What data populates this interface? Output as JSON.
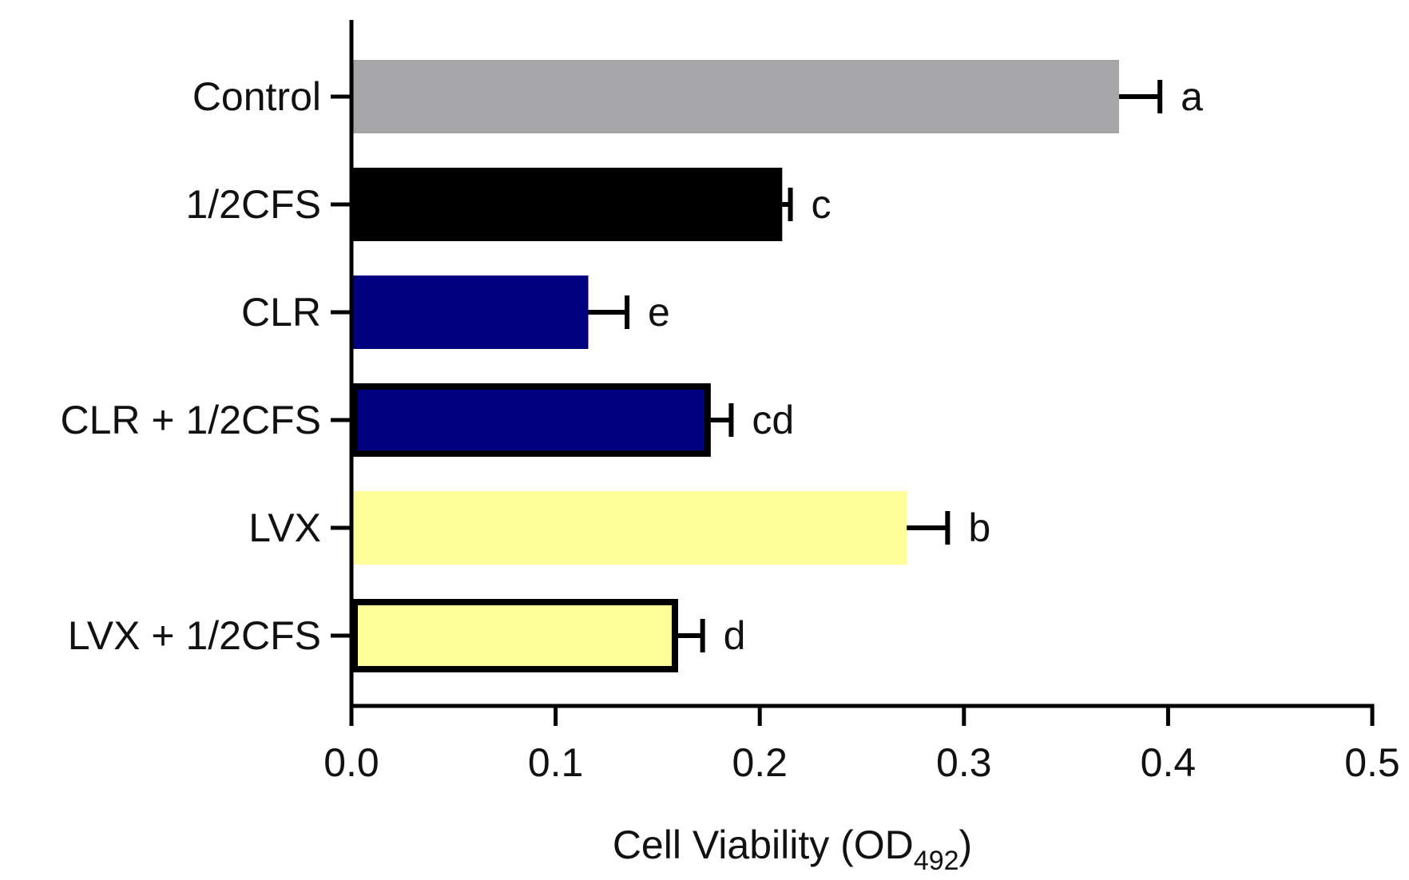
{
  "chart_data": {
    "type": "bar",
    "orientation": "horizontal",
    "title": "",
    "xlabel": "Cell Viability (OD",
    "xlabel_subscript": "492",
    "xlabel_suffix": ")",
    "ylabel": "",
    "xlim": [
      0,
      0.5
    ],
    "xticks": [
      0,
      0.1,
      0.2,
      0.3,
      0.4,
      0.5
    ],
    "xtick_labels": [
      "0.0",
      "0.1",
      "0.2",
      "0.3",
      "0.4",
      "0.5"
    ],
    "grid": false,
    "legend": "none",
    "categories": [
      "Control",
      "1/2CFS",
      "CLR",
      "CLR + 1/2CFS",
      "LVX",
      "LVX + 1/2CFS"
    ],
    "values": [
      0.376,
      0.211,
      0.116,
      0.176,
      0.272,
      0.16
    ],
    "errors": [
      0.02,
      0.004,
      0.019,
      0.01,
      0.02,
      0.012
    ],
    "significance_letters": [
      "a",
      "c",
      "e",
      "cd",
      "b",
      "d"
    ],
    "bar_colors": [
      "#a6a6a8",
      "#000000",
      "#000080",
      "#000080",
      "#ffff99",
      "#ffff99"
    ],
    "bar_outlined": [
      false,
      false,
      false,
      true,
      false,
      true
    ]
  }
}
